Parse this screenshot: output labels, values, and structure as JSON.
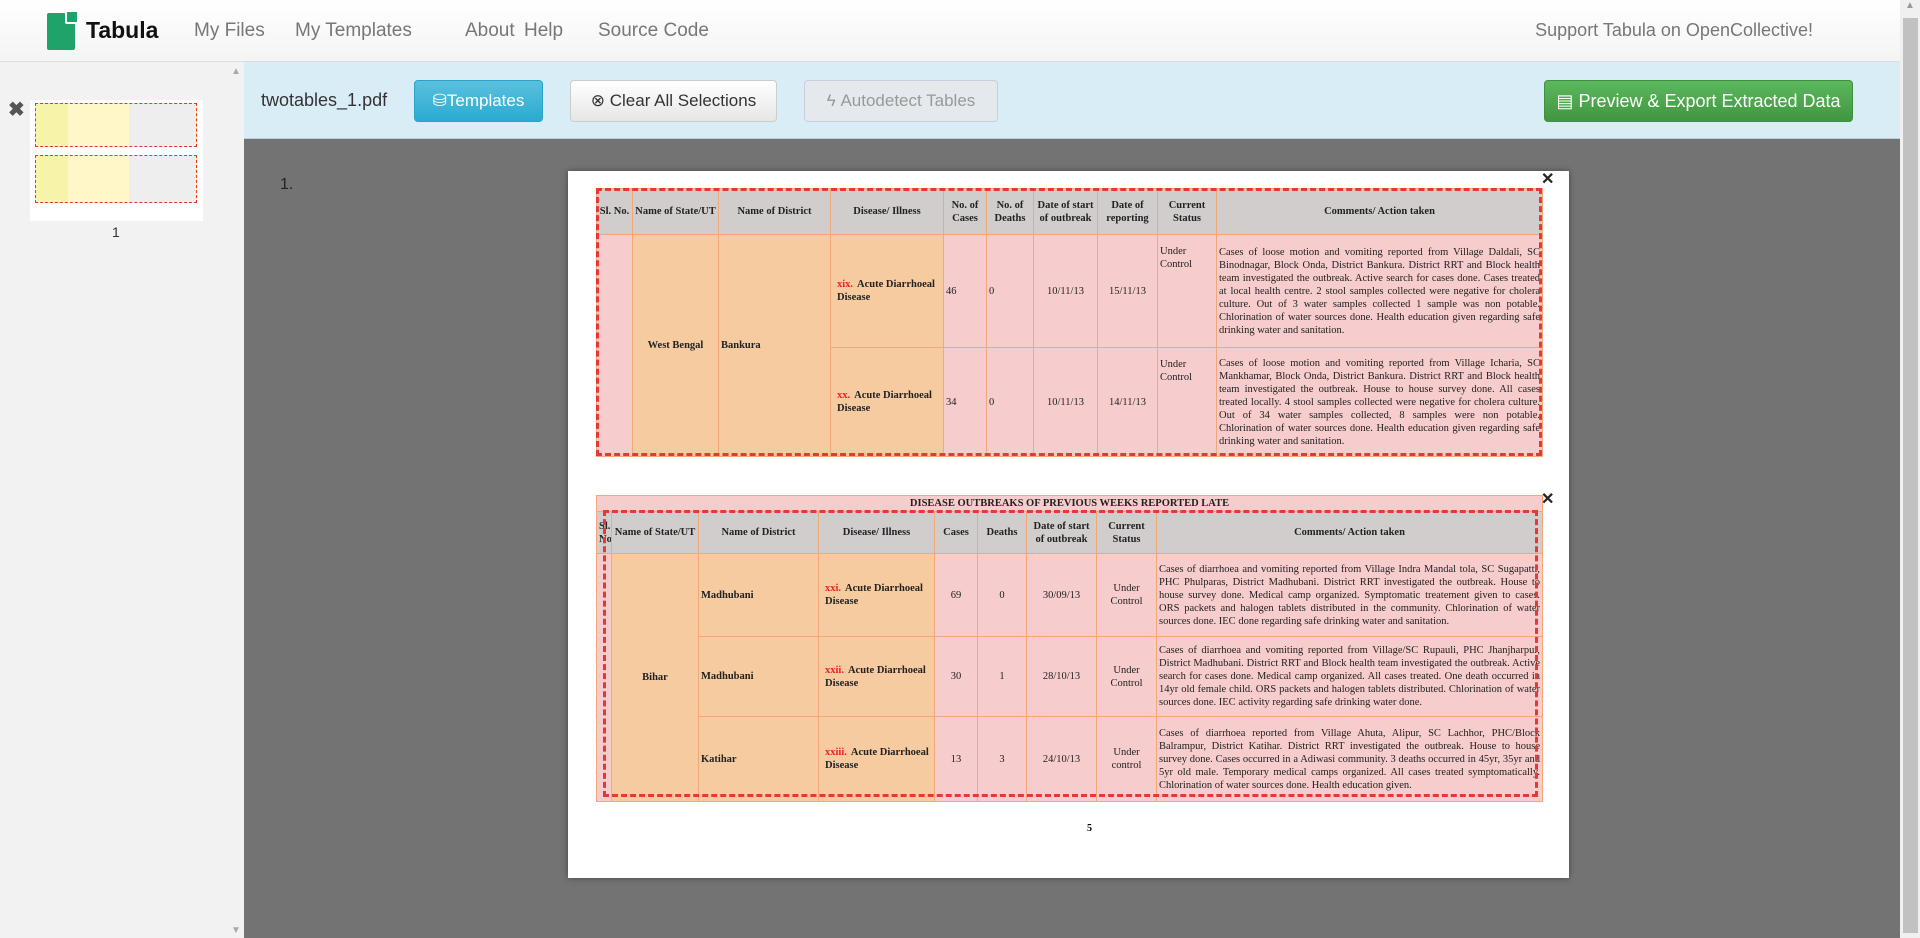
{
  "nav": {
    "brand": "Tabula",
    "links": [
      "My Files",
      "My Templates",
      "About",
      "Help",
      "Source Code"
    ],
    "support": "Support Tabula on OpenCollective!"
  },
  "sidebar": {
    "page_label": "1"
  },
  "toolbar": {
    "filename": "twotables_1.pdf",
    "templates": "Templates",
    "clear": "Clear All Selections",
    "autodetect": "Autodetect Tables",
    "export": "Preview & Export Extracted Data"
  },
  "colors": {
    "primary": "#31b0d5",
    "success": "#4cae4c",
    "selection": "#e53935",
    "toolbar_bg": "#d9edf7"
  },
  "main": {
    "page_number_label": "1.",
    "pdf_page_number": "5"
  },
  "table1": {
    "headers": [
      "Sl. No.",
      "Name of State/UT",
      "Name of District",
      "Disease/ Illness",
      "No. of Cases",
      "No. of Deaths",
      "Date of start of outbreak",
      "Date of reporting",
      "Current Status",
      "Comments/ Action taken"
    ],
    "state": "West Bengal",
    "district": "Bankura",
    "rows": [
      {
        "num": "xix.",
        "disease": "Acute Diarrhoeal Disease",
        "cases": "46",
        "deaths": "0",
        "start": "10/11/13",
        "reported": "15/11/13",
        "status": "Under Control",
        "comment": "Cases of loose motion and vomiting reported from Village Daldali, SC Binodnagar, Block Onda, District Bankura. District RRT and Block health team investigated the outbreak. Active search for cases done. Cases treated at local health centre. 2 stool samples collected were negative for cholera culture. Out of 3 water samples collected 1 sample was non potable. Chlorination of water sources done. Health education given regarding safe drinking water and sanitation."
      },
      {
        "num": "xx.",
        "disease": "Acute Diarrhoeal Disease",
        "cases": "34",
        "deaths": "0",
        "start": "10/11/13",
        "reported": "14/11/13",
        "status": "Under Control",
        "comment": "Cases of loose motion and vomiting reported from Village Icharia, SC Mankhamar, Block Onda, District Bankura. District RRT and Block health team investigated the outbreak. House to house survey done. All cases treated locally. 4 stool samples collected were negative for cholera culture. Out of 34 water samples collected, 8 samples were non potable. Chlorination of water sources done. Health education given regarding safe drinking water and sanitation."
      }
    ]
  },
  "table2": {
    "title": "DISEASE OUTBREAKS  OF PREVIOUS WEEKS REPORTED LATE",
    "headers": [
      "Sl. No",
      "Name of State/UT",
      "Name of District",
      "Disease/ Illness",
      "Cases",
      "Deaths",
      "Date of start of outbreak",
      "Current Status",
      "Comments/ Action taken"
    ],
    "state": "Bihar",
    "rows": [
      {
        "district": "Madhubani",
        "num": "xxi.",
        "disease": "Acute Diarrhoeal Disease",
        "cases": "69",
        "deaths": "0",
        "start": "30/09/13",
        "status": "Under Control",
        "comment": "Cases of diarrhoea and vomiting reported from Village Indra Mandal tola, SC Sugapatti, PHC Phulparas, District Madhubani. District RRT investigated the outbreak. House to house survey done. Medical camp organized. Symptomatic treatement given to cases. ORS packets and halogen tablets distributed in the community. Chlorination of water sources done. IEC done regarding safe drinking water and sanitation."
      },
      {
        "district": "Madhubani",
        "num": "xxii.",
        "disease": "Acute Diarrhoeal Disease",
        "cases": "30",
        "deaths": "1",
        "start": "28/10/13",
        "status": "Under Control",
        "comment": "Cases of diarrhoea and vomiting reported from Village/SC Rupauli, PHC Jhanjharpur, District Madhubani. District RRT and Block health team investigated the outbreak. Active search for cases done. Medical camp organized. All cases treated. One death occurred in 14yr old female child. ORS packets and halogen tablets distributed. Chlorination of water sources done. IEC activity regarding safe drinking water done."
      },
      {
        "district": "Katihar",
        "num": "xxiii.",
        "disease": "Acute Diarrhoeal Disease",
        "cases": "13",
        "deaths": "3",
        "start": "24/10/13",
        "status": "Under control",
        "comment": "Cases of diarrhoea reported from Village Ahuta, Alipur, SC Lachhor, PHC/Block Balrampur, District Katihar. District RRT investigated the outbreak.  House to house survey done. Cases occurred in a Adiwasi community. 3 deaths occurred in 45yr, 35yr and 5yr old male. Temporary medical camps organized. All cases treated symptomatically. Chlorination of water sources done. Health education given."
      }
    ]
  }
}
